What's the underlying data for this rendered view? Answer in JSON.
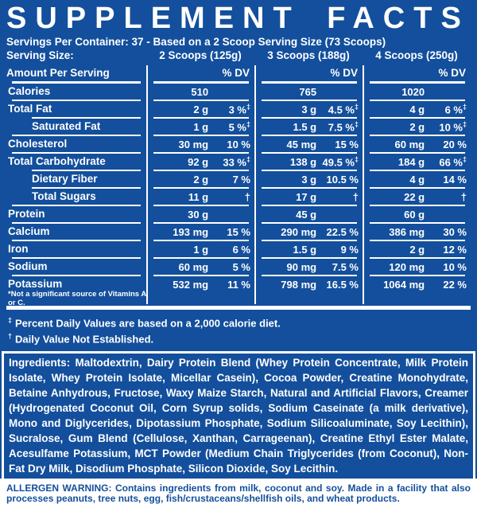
{
  "colors": {
    "background_blue": "#134F9C",
    "text_white": "#FFFFFF",
    "allergen_background": "#FFFFFF",
    "allergen_text_blue": "#134F9C"
  },
  "header": {
    "title": "SUPPLEMENT FACTS",
    "servings_line": "Servings Per Container: 37 - Based on a 2 Scoop Serving Size (73 Scoops)",
    "serving_size_label": "Serving Size:",
    "serving_sizes": [
      "2 Scoops (125g)",
      "3 Scoops (188g)",
      "4 Scoops (250g)"
    ]
  },
  "table": {
    "amount_header": "Amount Per Serving",
    "dv_header": "% DV",
    "dagger_symbol": "‡",
    "rows": [
      {
        "label": "Calories",
        "indent": false,
        "values": [
          {
            "amount": "510",
            "dv": "",
            "dagger": false
          },
          {
            "amount": "765",
            "dv": "",
            "dagger": false
          },
          {
            "amount": "1020",
            "dv": "",
            "dagger": false
          }
        ]
      },
      {
        "label": "Total Fat",
        "indent": false,
        "values": [
          {
            "amount": "2 g",
            "dv": "3 %",
            "dagger": true
          },
          {
            "amount": "3 g",
            "dv": "4.5 %",
            "dagger": true
          },
          {
            "amount": "4 g",
            "dv": "6 %",
            "dagger": true
          }
        ]
      },
      {
        "label": "Saturated Fat",
        "indent": true,
        "values": [
          {
            "amount": "1 g",
            "dv": "5 %",
            "dagger": true
          },
          {
            "amount": "1.5 g",
            "dv": "7.5 %",
            "dagger": true
          },
          {
            "amount": "2 g",
            "dv": "10 %",
            "dagger": true
          }
        ]
      },
      {
        "label": "Cholesterol",
        "indent": false,
        "values": [
          {
            "amount": "30 mg",
            "dv": "10 %",
            "dagger": false
          },
          {
            "amount": "45 mg",
            "dv": "15 %",
            "dagger": false
          },
          {
            "amount": "60 mg",
            "dv": "20 %",
            "dagger": false
          }
        ]
      },
      {
        "label": "Total Carbohydrate",
        "indent": false,
        "values": [
          {
            "amount": "92 g",
            "dv": "33 %",
            "dagger": true
          },
          {
            "amount": "138 g",
            "dv": "49.5 %",
            "dagger": true
          },
          {
            "amount": "184 g",
            "dv": "66 %",
            "dagger": true
          }
        ]
      },
      {
        "label": "Dietary Fiber",
        "indent": true,
        "values": [
          {
            "amount": "2 g",
            "dv": "7 %",
            "dagger": false
          },
          {
            "amount": "3 g",
            "dv": "10.5 %",
            "dagger": false
          },
          {
            "amount": "4 g",
            "dv": "14 %",
            "dagger": false
          }
        ]
      },
      {
        "label": "Total Sugars",
        "indent": true,
        "values": [
          {
            "amount": "11 g",
            "dv": "†",
            "dagger": false
          },
          {
            "amount": "17 g",
            "dv": "†",
            "dagger": false
          },
          {
            "amount": "22 g",
            "dv": "†",
            "dagger": false
          }
        ]
      },
      {
        "label": "Protein",
        "indent": false,
        "values": [
          {
            "amount": "30 g",
            "dv": "",
            "dagger": false
          },
          {
            "amount": "45 g",
            "dv": "",
            "dagger": false
          },
          {
            "amount": "60 g",
            "dv": "",
            "dagger": false
          }
        ]
      },
      {
        "label": "Calcium",
        "indent": false,
        "values": [
          {
            "amount": "193 mg",
            "dv": "15 %",
            "dagger": false
          },
          {
            "amount": "290 mg",
            "dv": "22.5 %",
            "dagger": false
          },
          {
            "amount": "386 mg",
            "dv": "30 %",
            "dagger": false
          }
        ]
      },
      {
        "label": "Iron",
        "indent": false,
        "values": [
          {
            "amount": "1 g",
            "dv": "6 %",
            "dagger": false
          },
          {
            "amount": "1.5 g",
            "dv": "9 %",
            "dagger": false
          },
          {
            "amount": "2 g",
            "dv": "12 %",
            "dagger": false
          }
        ]
      },
      {
        "label": "Sodium",
        "indent": false,
        "values": [
          {
            "amount": "60 mg",
            "dv": "5 %",
            "dagger": false
          },
          {
            "amount": "90 mg",
            "dv": "7.5 %",
            "dagger": false
          },
          {
            "amount": "120 mg",
            "dv": "10 %",
            "dagger": false
          }
        ]
      },
      {
        "label": "Potassium",
        "indent": false,
        "values": [
          {
            "amount": "532 mg",
            "dv": "11 %",
            "dagger": false
          },
          {
            "amount": "798 mg",
            "dv": "16.5 %",
            "dagger": false
          },
          {
            "amount": "1064 mg",
            "dv": "22 %",
            "dagger": false
          }
        ]
      }
    ],
    "footnote": "*Not a significant source of Vitamins A or C."
  },
  "footnotes": [
    {
      "symbol": "‡",
      "text": "Percent Daily Values are based on a 2,000 calorie diet."
    },
    {
      "symbol": "†",
      "text": "Daily Value Not Established."
    }
  ],
  "ingredients": {
    "label": "Ingredients:",
    "text": " Maltodextrin, Dairy Protein Blend (Whey Protein Concentrate, Milk Protein Isolate, Whey Protein Isolate, Micellar Casein), Cocoa Powder, Creatine Monohydrate, Betaine Anhydrous, Fructose, Waxy Maize Starch, Natural and Artificial Flavors, Creamer (Hydrogenated Coconut Oil, Corn Syrup solids, Sodium Caseinate (a milk derivative), Mono and Diglycerides, Dipotassium Phosphate, Sodium Silicoaluminate, Soy Lecithin), Sucralose, Gum Blend (Cellulose, Xanthan, Carrageenan), Creatine Ethyl Ester Malate, Acesulfame Potassium, MCT Powder (Medium Chain Triglycerides (from Coconut), Non-Fat Dry Milk, Disodium Phosphate, Silicon Dioxide, Soy Lecithin."
  },
  "allergen": {
    "label": "ALLERGEN WARNING:",
    "bold_text": " Contains ingredients from milk, coconut and soy.",
    "text": " Made in a facility that also processes peanuts, tree nuts, egg, fish/crustaceans/shellfish oils, and wheat products."
  }
}
